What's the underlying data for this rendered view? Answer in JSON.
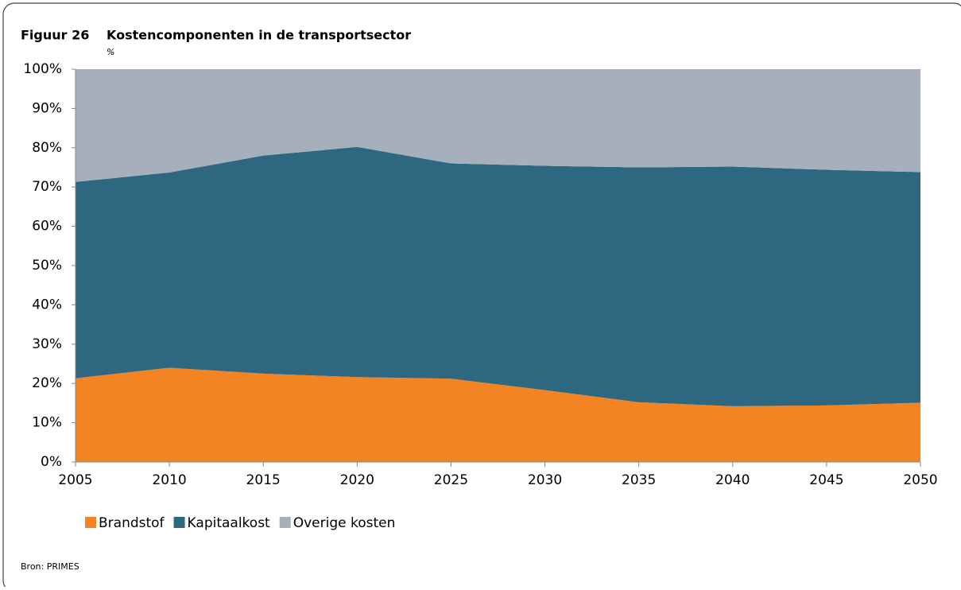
{
  "chart_data": {
    "type": "stacked_area",
    "figure_label": "Figuur 26",
    "title": "Kostencomponenten in de transportsector",
    "subtitle": "%",
    "source": "Bron: PRIMES",
    "x": [
      2005,
      2010,
      2015,
      2020,
      2025,
      2030,
      2035,
      2040,
      2045,
      2050
    ],
    "series": [
      {
        "name": "Brandstof",
        "color": "#f28423",
        "values": [
          21.3,
          24.0,
          22.5,
          21.6,
          21.2,
          18.3,
          15.2,
          14.2,
          14.4,
          15.1
        ]
      },
      {
        "name": "Kapitaalkost",
        "color": "#2e6880",
        "values": [
          50.0,
          49.7,
          55.5,
          58.6,
          54.8,
          57.1,
          59.8,
          61.0,
          60.0,
          58.7
        ]
      },
      {
        "name": "Overige kosten",
        "color": "#a6b0bd",
        "values": [
          28.7,
          26.3,
          22.0,
          19.8,
          24.0,
          24.6,
          25.0,
          24.8,
          25.6,
          26.2
        ]
      }
    ],
    "xlim": [
      2005,
      2050
    ],
    "xticks": [
      2005,
      2010,
      2015,
      2020,
      2025,
      2030,
      2035,
      2040,
      2045,
      2050
    ],
    "ylim": [
      0,
      100
    ],
    "yticks": [
      {
        "value": 0,
        "label": "0%"
      },
      {
        "value": 10,
        "label": "10%"
      },
      {
        "value": 20,
        "label": "20%"
      },
      {
        "value": 30,
        "label": "30%"
      },
      {
        "value": 40,
        "label": "40%"
      },
      {
        "value": 50,
        "label": "50%"
      },
      {
        "value": 60,
        "label": "60%"
      },
      {
        "value": 70,
        "label": "70%"
      },
      {
        "value": 80,
        "label": "80%"
      },
      {
        "value": 90,
        "label": "90%"
      },
      {
        "value": 100,
        "label": "100%"
      }
    ],
    "legend": "bottom-left"
  }
}
